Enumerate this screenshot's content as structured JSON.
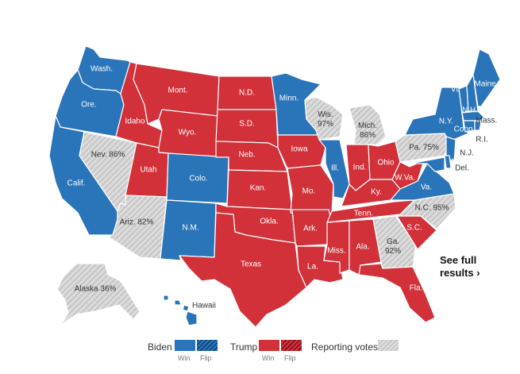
{
  "colors": {
    "biden": "#2a74b9",
    "trump": "#d2313a",
    "pending": "#dcdcdc",
    "pending_stripe": "#c4c4c4"
  },
  "states": [
    {
      "id": "wa",
      "label": "Wash.",
      "status": "biden"
    },
    {
      "id": "or",
      "label": "Ore.",
      "status": "biden"
    },
    {
      "id": "ca",
      "label": "Calif.",
      "status": "biden"
    },
    {
      "id": "nv",
      "label": "Nev. 86%",
      "status": "pending"
    },
    {
      "id": "id",
      "label": "Idaho",
      "status": "trump"
    },
    {
      "id": "mt",
      "label": "Mont.",
      "status": "trump"
    },
    {
      "id": "wy",
      "label": "Wyo.",
      "status": "trump"
    },
    {
      "id": "ut",
      "label": "Utah",
      "status": "trump"
    },
    {
      "id": "az",
      "label": "Ariz. 82%",
      "status": "pending"
    },
    {
      "id": "co",
      "label": "Colo.",
      "status": "biden"
    },
    {
      "id": "nm",
      "label": "N.M.",
      "status": "biden"
    },
    {
      "id": "nd",
      "label": "N.D.",
      "status": "trump"
    },
    {
      "id": "sd",
      "label": "S.D.",
      "status": "trump"
    },
    {
      "id": "ne",
      "label": "Neb.",
      "status": "trump"
    },
    {
      "id": "ks",
      "label": "Kan.",
      "status": "trump"
    },
    {
      "id": "ok",
      "label": "Okla.",
      "status": "trump"
    },
    {
      "id": "tx",
      "label": "Texas",
      "status": "trump"
    },
    {
      "id": "mn",
      "label": "Minn.",
      "status": "biden"
    },
    {
      "id": "ia",
      "label": "Iowa",
      "status": "trump"
    },
    {
      "id": "mo",
      "label": "Mo.",
      "status": "trump"
    },
    {
      "id": "ar",
      "label": "Ark.",
      "status": "trump"
    },
    {
      "id": "la",
      "label": "La.",
      "status": "trump"
    },
    {
      "id": "wi",
      "label": "Wis. 97%",
      "status": "pending"
    },
    {
      "id": "il",
      "label": "Ill.",
      "status": "biden"
    },
    {
      "id": "mi",
      "label": "Mich. 86%",
      "status": "pending"
    },
    {
      "id": "in",
      "label": "Ind.",
      "status": "trump"
    },
    {
      "id": "oh",
      "label": "Ohio",
      "status": "trump"
    },
    {
      "id": "ky",
      "label": "Ky.",
      "status": "trump"
    },
    {
      "id": "tn",
      "label": "Tenn.",
      "status": "trump"
    },
    {
      "id": "ms",
      "label": "Miss.",
      "status": "trump"
    },
    {
      "id": "al",
      "label": "Ala.",
      "status": "trump"
    },
    {
      "id": "ga",
      "label": "Ga. 92%",
      "status": "pending"
    },
    {
      "id": "fl",
      "label": "Fla.",
      "status": "trump"
    },
    {
      "id": "sc",
      "label": "S.C.",
      "status": "trump"
    },
    {
      "id": "nc",
      "label": "N.C. 95%",
      "status": "pending"
    },
    {
      "id": "va",
      "label": "Va.",
      "status": "biden"
    },
    {
      "id": "wv",
      "label": "W.Va.",
      "status": "trump"
    },
    {
      "id": "pa",
      "label": "Pa. 75%",
      "status": "pending"
    },
    {
      "id": "ny",
      "label": "N.Y.",
      "status": "biden"
    },
    {
      "id": "vt",
      "label": "Vt.",
      "status": "biden"
    },
    {
      "id": "nh",
      "label": "N.H.",
      "status": "biden"
    },
    {
      "id": "me",
      "label": "Maine",
      "status": "biden"
    },
    {
      "id": "ma",
      "label": "Mass.",
      "status": "biden"
    },
    {
      "id": "ri",
      "label": "R.I.",
      "status": "biden"
    },
    {
      "id": "ct",
      "label": "Conn.",
      "status": "biden"
    },
    {
      "id": "nj",
      "label": "N.J.",
      "status": "biden"
    },
    {
      "id": "de",
      "label": "Del.",
      "status": "biden"
    },
    {
      "id": "md",
      "label": "Md.",
      "status": "biden"
    },
    {
      "id": "ak",
      "label": "Alaska 36%",
      "status": "pending"
    },
    {
      "id": "hi",
      "label": "Hawaii",
      "status": "biden"
    }
  ],
  "see_full_results": {
    "line1": "See full",
    "line2": "results",
    "arrow": "›"
  },
  "legend": {
    "biden": "Biden",
    "trump": "Trump",
    "reporting": "Reporting votes",
    "win": "Win",
    "flip": "Flip"
  }
}
